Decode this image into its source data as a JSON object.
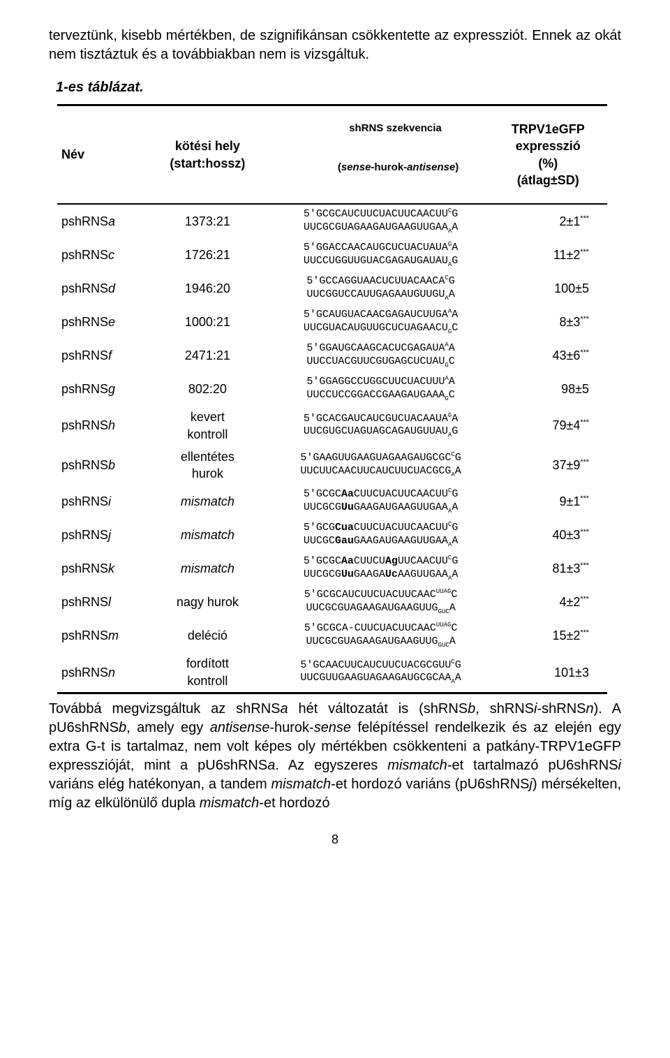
{
  "intro_para": "terveztünk, kisebb mértékben, de szignifikánsan csökkentette az expressziót. Ennek az okát nem tisztáztuk és a továbbiakban nem is vizsgáltuk.",
  "table_title": "1-es táblázat.",
  "headers": {
    "name": "Név",
    "pos_line1": "kötési hely",
    "pos_line2": "(start:hossz)",
    "seq_line1": "shRNS szekvencia",
    "seq_line2_pre": "(",
    "seq_line2_sense": "sense",
    "seq_line2_mid": "-hurok-",
    "seq_line2_anti": "antisense",
    "seq_line2_post": ")",
    "exp_line1": "TRPV1eGFP",
    "exp_line2": "expresszió",
    "exp_line3": "(%)",
    "exp_line4": "(átlag±SD)"
  },
  "rows": [
    {
      "name_pre": "pshRNS",
      "name_suf": "a",
      "pos": "1373:21",
      "pos_italic": false,
      "seq": "5'GCGCAUCUUCUACUUCAACUU<sup>C</sup>G\nUUCGCGUAGAAGAUGAAGUUGAA<sub>A</sub>A",
      "exp": "2±1",
      "stars": "***"
    },
    {
      "name_pre": "pshRNS",
      "name_suf": "c",
      "pos": "1726:21",
      "pos_italic": false,
      "seq": "5'GGACCAACAUGCUCUACUAUA<sup>G</sup>A\nUUCCUGGUUGUACGAGAUGAUAU<sub>A</sub>G",
      "exp": "11±2",
      "stars": "***"
    },
    {
      "name_pre": "pshRNS",
      "name_suf": "d",
      "pos": "1946:20",
      "pos_italic": false,
      "seq": "5'GCCAGGUAACUCUUACAACA<sup>C</sup>G\nUUCGGUCCAUUGAGAAUGUUGU<sub>A</sub>A",
      "exp": "100±5",
      "stars": ""
    },
    {
      "name_pre": "pshRNS",
      "name_suf": "e",
      "pos": "1000:21",
      "pos_italic": false,
      "seq": "5'GCAUGUACAACGAGAUCUUGA<sup>A</sup>A\nUUCGUACAUGUUGCUCUAGAACU<sub>G</sub>C",
      "exp": "8±3",
      "stars": "***"
    },
    {
      "name_pre": "pshRNS",
      "name_suf": "f",
      "pos": "2471:21",
      "pos_italic": false,
      "seq": "5'GGAUGCAAGCACUCGAGAUA<sup>A</sup>A\nUUCCUACGUUCGUGAGCUCUAU<sub>G</sub>C",
      "exp": "43±6",
      "stars": "***"
    },
    {
      "name_pre": "pshRNS",
      "name_suf": "g",
      "pos": "802:20",
      "pos_italic": false,
      "seq": "5'GGAGGCCUGGCUUCUACUUU<sup>A</sup>A\nUUCCUCCGGACCGAAGAUGAAA<sub>G</sub>C",
      "exp": "98±5",
      "stars": ""
    },
    {
      "name_pre": "pshRNS",
      "name_suf": "h",
      "pos": "kevert\nkontroll",
      "pos_italic": false,
      "seq": "5'GCACGAUCAUCGUCUACAAUA<sup>G</sup>A\nUUCGUGCUAGUAGCAGAUGUUAU<sub>A</sub>G",
      "exp": "79±4",
      "stars": "***"
    },
    {
      "name_pre": "pshRNS",
      "name_suf": "b",
      "pos": "ellentétes\nhurok",
      "pos_italic": false,
      "seq": "5'GAAGUUGAAGUAGAAGAUGCGC<sup>C</sup>G\nUUCUUCAACUUCAUCUUCUACGCG<sub>A</sub>A",
      "exp": "37±9",
      "stars": "***"
    },
    {
      "name_pre": "pshRNS",
      "name_suf": "i",
      "pos": "mismatch",
      "pos_italic": true,
      "seq": "5'GCGC<b>Aa</b>CUUCUACUUCAACUU<sup>C</sup>G\nUUCGCG<b>Uu</b>GAAGAUGAAGUUGAA<sub>A</sub>A",
      "exp": "9±1",
      "stars": "***"
    },
    {
      "name_pre": "pshRNS",
      "name_suf": "j",
      "pos": "mismatch",
      "pos_italic": true,
      "seq": "5'GCG<b>Cua</b>CUUCUACUUCAACUU<sup>C</sup>G\nUUCGC<b>Gau</b>GAAGAUGAAGUUGAA<sub>A</sub>A",
      "exp": "40±3",
      "stars": "***"
    },
    {
      "name_pre": "pshRNS",
      "name_suf": "k",
      "pos": "mismatch",
      "pos_italic": true,
      "seq": "5'GCGC<b>Aa</b>CUUCU<b>Ag</b>UUCAACUU<sup>C</sup>G\nUUCGCG<b>Uu</b>GAAGA<b>Uc</b>AAGUUGAA<sub>A</sub>A",
      "exp": "81±3",
      "stars": "***"
    },
    {
      "name_pre": "pshRNS",
      "name_suf": "l",
      "pos": "nagy hurok",
      "pos_italic": false,
      "seq": "5'GCGCAUCUUCUACUUCAAC<sup>UUAG</sup>C\nUUCGCGUAGAAGAUGAAGUUG<sub>GUC</sub>A",
      "exp": "4±2",
      "stars": "***"
    },
    {
      "name_pre": "pshRNS",
      "name_suf": "m",
      "pos": "deléció",
      "pos_italic": false,
      "seq": "5'GCGCA-CUUCUACUUCAAC<sup>UUAG</sup>C\nUUCGCGUAGAAGAUGAAGUUG<sub>GUC</sub>A",
      "exp": "15±2",
      "stars": "***"
    },
    {
      "name_pre": "pshRNS",
      "name_suf": "n",
      "pos": "fordított\nkontroll",
      "pos_italic": false,
      "seq": "5'GCAACUUCAUCUUCUACGCGUU<sup>C</sup>G\nUUCGUUGAAGUAGAAGAUGCGCAA<sub>A</sub>A",
      "exp": "101±3",
      "stars": ""
    }
  ],
  "outro_para_html": "Továbbá megvizsgáltuk az shRNS<i>a</i> hét változatát is (shRNS<i>b</i>, shRNS<i>i</i>-shRNS<i>n</i>). A pU6shRNS<i>b</i>, amely egy <i>antisense</i>-hurok-<i>sense</i> felépítéssel rendelkezik és az elején egy extra G-t is tartalmaz, nem volt képes oly mértékben csökkenteni a patkány-TRPV1eGFP expresszióját, mint a pU6shRNS<i>a</i>. Az egyszeres <i>mismatch</i>-et tartalmazó pU6shRNS<i>i</i> variáns elég hatékonyan, a tandem <i>mismatch</i>-et hordozó variáns (pU6shRNS<i>j</i>) mérsékelten, míg az elkülönülő dupla <i>mismatch</i>-et hordozó",
  "page_number": "8",
  "colors": {
    "text": "#000000",
    "background": "#ffffff",
    "rule": "#000000"
  },
  "typography": {
    "body_font": "Arial",
    "body_size_pt": 15,
    "mono_font": "Courier New",
    "mono_size_pt": 11
  }
}
